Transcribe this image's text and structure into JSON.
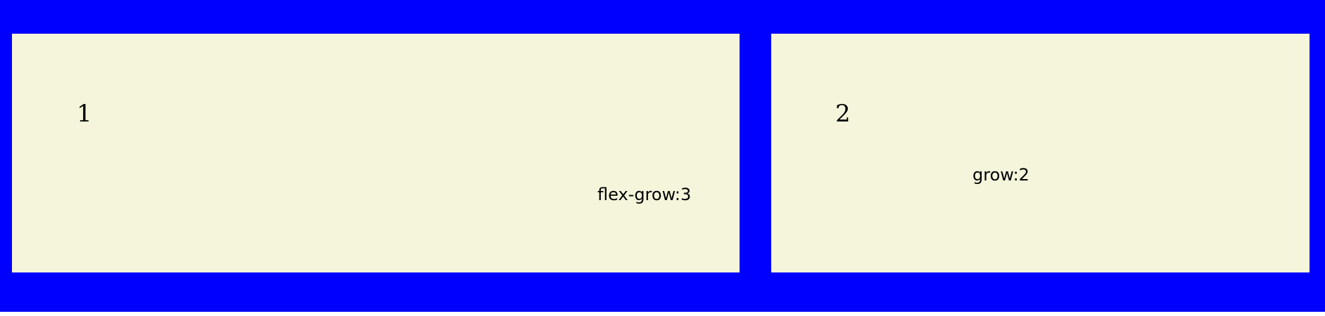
{
  "colors": {
    "container_background": "#0000ff",
    "item_background": "#f5f5dc",
    "text": "#000000"
  },
  "items": [
    {
      "number": "1",
      "label": "flex-grow:3"
    },
    {
      "number": "2",
      "label": "grow:2"
    }
  ]
}
